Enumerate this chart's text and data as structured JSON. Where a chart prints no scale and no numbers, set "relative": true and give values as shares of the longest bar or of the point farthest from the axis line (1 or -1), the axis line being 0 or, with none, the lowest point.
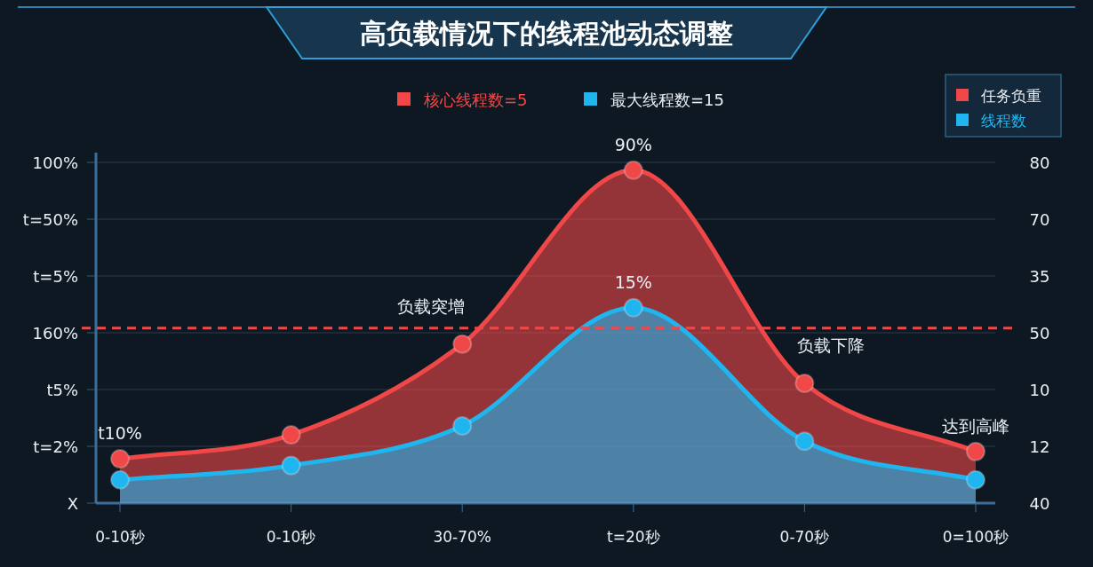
{
  "chart_data": {
    "type": "area",
    "title": "高负载情况下的线程池动态调整",
    "categories": [
      "0-10秒",
      "0-10秒",
      "30-70%",
      "t=20秒",
      "0-70秒",
      "0=100秒"
    ],
    "relative": true,
    "series": [
      {
        "name": "任务负重",
        "color": "#f04848",
        "values": [
          0.133,
          0.205,
          0.478,
          1,
          0.36,
          0.155
        ]
      },
      {
        "name": "线程数",
        "color": "#1fb6f0",
        "values": [
          0.07,
          0.113,
          0.232,
          0.587,
          0.186,
          0.07
        ]
      }
    ],
    "y_categories": [
      "100%",
      "t=50%",
      "t=5%",
      "160%",
      "t5%",
      "t=2%",
      "X"
    ],
    "y2_categories": [
      "80",
      "70",
      "35",
      "50",
      "10",
      "12",
      "40"
    ],
    "ref_lines": [
      {
        "axis": "y",
        "value": 0.526,
        "color": "#f04848",
        "line_style": "dashed"
      }
    ],
    "annotations": [
      "核心线程数=5",
      "最大线程数=15",
      {
        "text": "t10%",
        "x": "0-10秒",
        "y": 0.133
      },
      {
        "text": "负载突增",
        "x": "30-70%",
        "y": 0.478
      },
      {
        "text": "90%",
        "x": "t=20秒",
        "y": 1
      },
      {
        "text": "15%",
        "x": "t=20秒",
        "y": 0.587
      },
      {
        "text": "负载下降",
        "x": "0-70秒",
        "y": 0.36
      },
      {
        "text": "达到高峰",
        "x": "0=100秒",
        "y": 0.155
      }
    ],
    "legend": "top right",
    "marker": "circle",
    "grid": "y"
  }
}
